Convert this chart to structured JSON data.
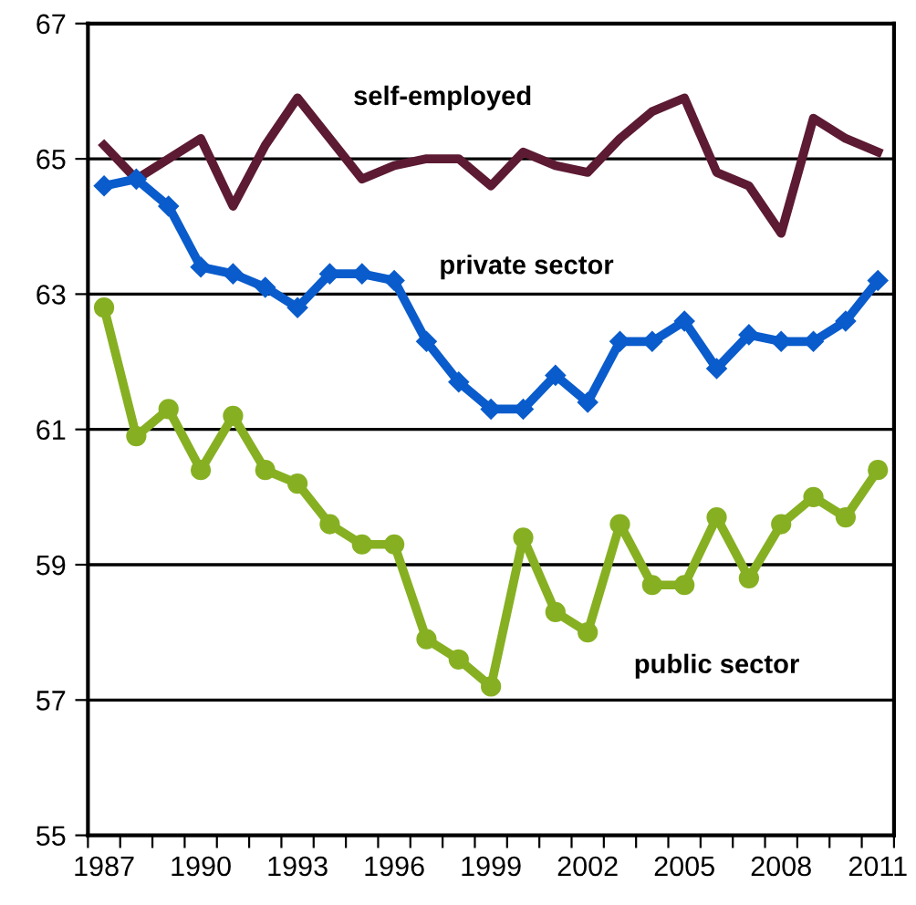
{
  "chart_data": {
    "type": "line",
    "categories": [
      "1987",
      null,
      null,
      "1990",
      null,
      null,
      "1993",
      null,
      null,
      "1996",
      null,
      null,
      "1999",
      null,
      null,
      "2002",
      null,
      null,
      "2005",
      null,
      null,
      "2008",
      null,
      null,
      "2011"
    ],
    "series": [
      {
        "name": "self-employed",
        "color": "#5c1a33",
        "marker": "none",
        "values": [
          65.2,
          64.7,
          65.0,
          65.3,
          64.3,
          65.2,
          65.9,
          65.3,
          64.7,
          64.9,
          65.0,
          65.0,
          64.6,
          65.1,
          64.9,
          64.8,
          65.3,
          65.7,
          65.9,
          64.8,
          64.6,
          63.9,
          65.6,
          65.3,
          65.1
        ]
      },
      {
        "name": "private sector",
        "color": "#0a5ccc",
        "marker": "diamond",
        "values": [
          64.6,
          64.7,
          64.3,
          63.4,
          63.3,
          63.1,
          62.8,
          63.3,
          63.3,
          63.2,
          62.3,
          61.7,
          61.3,
          61.3,
          61.8,
          61.4,
          62.3,
          62.3,
          62.6,
          61.9,
          62.4,
          62.3,
          62.3,
          62.6,
          63.2
        ]
      },
      {
        "name": "public sector",
        "color": "#86b022",
        "marker": "circle",
        "values": [
          62.8,
          60.9,
          61.3,
          60.4,
          61.2,
          60.4,
          60.2,
          59.6,
          59.3,
          59.3,
          57.9,
          57.6,
          57.2,
          59.4,
          58.3,
          58.0,
          59.6,
          58.7,
          58.7,
          59.7,
          58.8,
          59.6,
          60.0,
          59.7,
          60.4
        ]
      }
    ],
    "ylim": [
      55,
      67
    ],
    "yticks": [
      55,
      57,
      59,
      61,
      63,
      65,
      67
    ],
    "grid": "y",
    "legend": false,
    "line_style": "solid"
  }
}
